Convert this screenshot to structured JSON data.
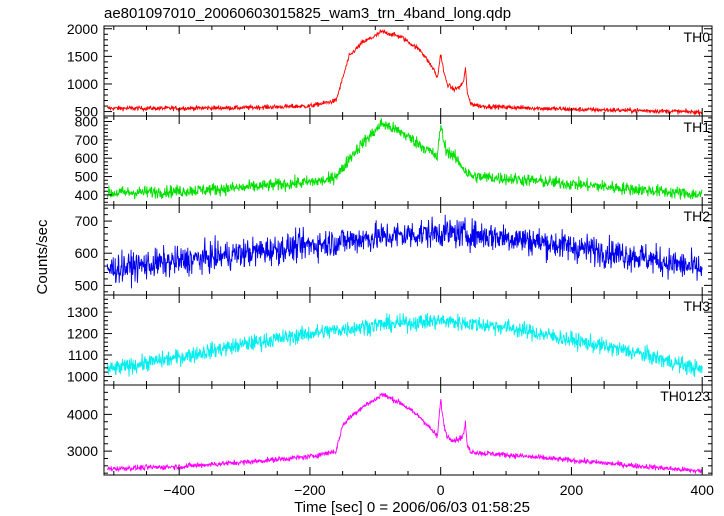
{
  "chart_data": {
    "type": "line",
    "title": "ae801097010_20060603015825_wam3_trn_4band_long.qdp",
    "xlabel": "Time [sec] 0 = 2006/06/03 01:58:25",
    "ylabel": "Counts/sec",
    "xlim": [
      -515,
      415
    ],
    "xticks": [
      -400,
      -200,
      0,
      200,
      400
    ],
    "series": [
      {
        "name": "TH0",
        "color": "#ff0000",
        "ylim": [
          420,
          2050
        ],
        "yticks": [
          500,
          1000,
          1500,
          2000
        ],
        "x": [
          -510,
          -400,
          -300,
          -200,
          -160,
          -150,
          -140,
          -120,
          -100,
          -90,
          -60,
          -30,
          -10,
          -5,
          0,
          5,
          10,
          20,
          30,
          35,
          38,
          40,
          45,
          60,
          100,
          200,
          300,
          400
        ],
        "values": [
          560,
          560,
          570,
          600,
          700,
          1100,
          1500,
          1750,
          1870,
          1950,
          1850,
          1600,
          1250,
          1100,
          1550,
          1200,
          1000,
          900,
          950,
          1050,
          1300,
          900,
          650,
          600,
          580,
          540,
          520,
          490
        ]
      },
      {
        "name": "TH1",
        "color": "#00e000",
        "ylim": [
          345,
          830
        ],
        "yticks": [
          400,
          500,
          600,
          700,
          800
        ],
        "x": [
          -510,
          -400,
          -300,
          -200,
          -170,
          -150,
          -140,
          -120,
          -100,
          -90,
          -60,
          -30,
          -10,
          -5,
          0,
          5,
          10,
          20,
          30,
          40,
          50,
          100,
          200,
          300,
          400
        ],
        "values": [
          410,
          420,
          440,
          470,
          480,
          540,
          600,
          680,
          750,
          790,
          740,
          670,
          620,
          600,
          790,
          680,
          640,
          610,
          570,
          520,
          500,
          490,
          460,
          430,
          400
        ]
      },
      {
        "name": "TH2",
        "color": "#0000ee",
        "ylim": [
          470,
          750
        ],
        "yticks": [
          500,
          600,
          700
        ],
        "x": [
          -510,
          -400,
          -300,
          -200,
          -100,
          0,
          100,
          200,
          300,
          400
        ],
        "values": [
          550,
          575,
          600,
          625,
          650,
          665,
          650,
          620,
          590,
          550
        ]
      },
      {
        "name": "TH3",
        "color": "#00eeee",
        "ylim": [
          960,
          1380
        ],
        "yticks": [
          1000,
          1100,
          1200,
          1300
        ],
        "x": [
          -510,
          -400,
          -300,
          -200,
          -100,
          0,
          100,
          200,
          300,
          400
        ],
        "values": [
          1030,
          1090,
          1150,
          1200,
          1240,
          1260,
          1230,
          1170,
          1110,
          1030
        ]
      },
      {
        "name": "TH0123",
        "color": "#ff00ff",
        "ylim": [
          2350,
          4800
        ],
        "yticks": [
          3000,
          4000
        ],
        "x": [
          -510,
          -400,
          -300,
          -200,
          -160,
          -150,
          -140,
          -120,
          -100,
          -90,
          -60,
          -30,
          -10,
          -5,
          0,
          5,
          10,
          20,
          30,
          35,
          38,
          40,
          45,
          60,
          100,
          200,
          300,
          400
        ],
        "values": [
          2520,
          2580,
          2700,
          2850,
          3000,
          3700,
          3900,
          4200,
          4400,
          4550,
          4300,
          3900,
          3500,
          3400,
          4400,
          3700,
          3400,
          3300,
          3350,
          3450,
          3800,
          3200,
          3000,
          2950,
          2900,
          2750,
          2600,
          2450
        ]
      }
    ]
  }
}
